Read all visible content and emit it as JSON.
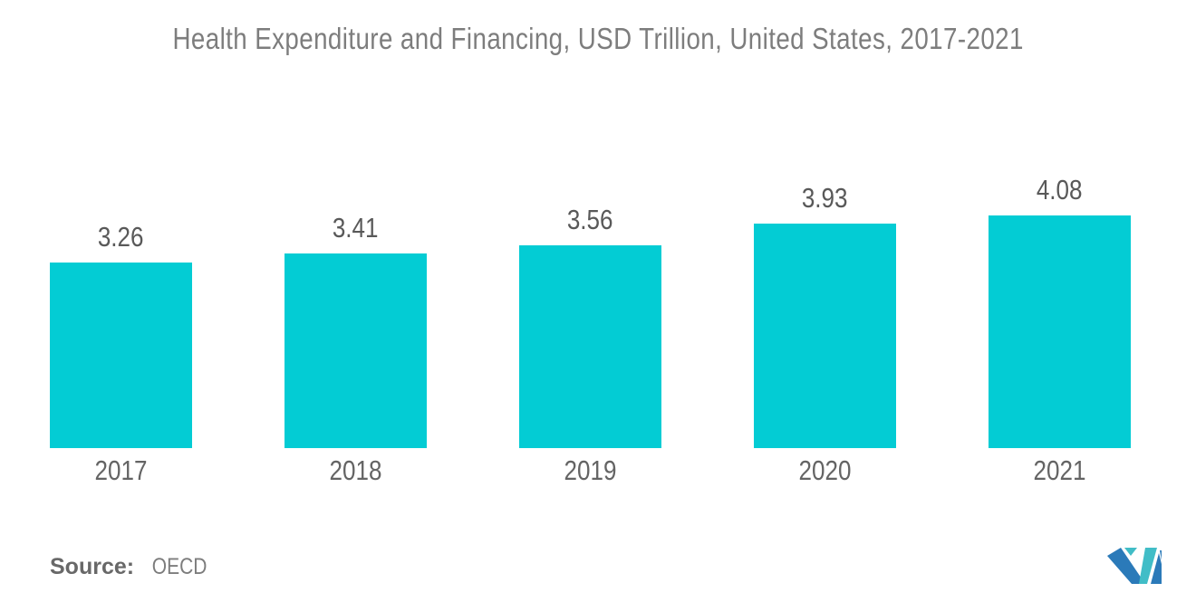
{
  "title": "Health Expenditure and Financing, USD Trillion, United States, 2017-2021",
  "source": {
    "label": "Source:",
    "value": "OECD"
  },
  "colors": {
    "bar": "#03CCD4",
    "title_text": "#7D7D7D",
    "value_text": "#595959",
    "axis_text": "#646464",
    "logo_blue": "#2B7AB9",
    "logo_teal": "#41BDC7"
  },
  "chart_data": {
    "type": "bar",
    "title": "Health Expenditure and Financing, USD Trillion, United States, 2017-2021",
    "categories": [
      "2017",
      "2018",
      "2019",
      "2020",
      "2021"
    ],
    "values": [
      3.26,
      3.41,
      3.56,
      3.93,
      4.08
    ],
    "labels": [
      "3.26",
      "3.41",
      "3.56",
      "3.93",
      "4.08"
    ],
    "xlabel": "",
    "ylabel": "USD Trillion",
    "ylim": [
      0,
      4.3
    ],
    "grid": false,
    "legend": false,
    "data_labels_position": "above-bars",
    "bar_color": "#03CCD4"
  }
}
